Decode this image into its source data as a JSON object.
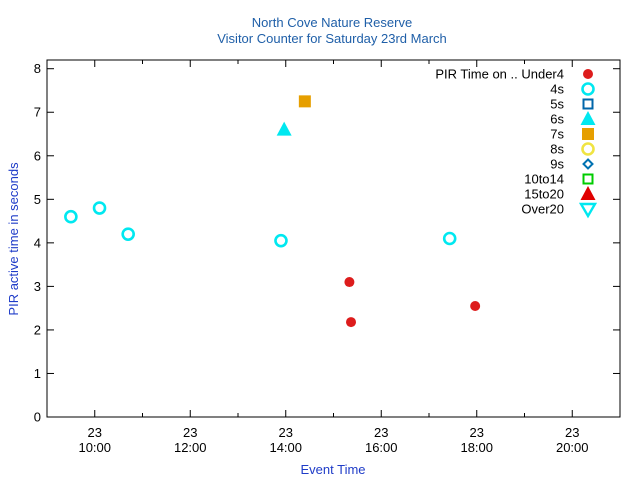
{
  "chart_data": {
    "type": "scatter",
    "title": [
      "North Cove Nature Reserve",
      "Visitor Counter for Saturday 23rd March"
    ],
    "xlabel": "Event Time",
    "ylabel": "PIR active time in seconds",
    "xlim": [
      "23 09:00",
      "23 21:00"
    ],
    "ylim": [
      0,
      8.2
    ],
    "x_ticks": [
      {
        "line1": "23",
        "line2": "10:00"
      },
      {
        "line1": "23",
        "line2": "12:00"
      },
      {
        "line1": "23",
        "line2": "14:00"
      },
      {
        "line1": "23",
        "line2": "16:00"
      },
      {
        "line1": "23",
        "line2": "18:00"
      },
      {
        "line1": "23",
        "line2": "20:00"
      }
    ],
    "y_ticks": [
      "0",
      "1",
      "2",
      "3",
      "4",
      "5",
      "6",
      "7",
      "8"
    ],
    "legend_position": "top-right",
    "legend_title": "PIR Time on ..",
    "grid": false,
    "series": [
      {
        "name": "Under4",
        "color": "#dd1c1c",
        "marker": "filled-circle",
        "points": [
          {
            "x": "23 15:20",
            "y": 3.1
          },
          {
            "x": "23 15:22",
            "y": 2.18
          },
          {
            "x": "23 17:58",
            "y": 2.55
          }
        ]
      },
      {
        "name": "4s",
        "color": "#00e8f0",
        "marker": "open-circle",
        "points": [
          {
            "x": "23 09:30",
            "y": 4.6
          },
          {
            "x": "23 10:06",
            "y": 4.8
          },
          {
            "x": "23 10:42",
            "y": 4.2
          },
          {
            "x": "23 13:54",
            "y": 4.05
          },
          {
            "x": "23 17:26",
            "y": 4.1
          }
        ]
      },
      {
        "name": "5s",
        "color": "#0066aa",
        "marker": "open-square",
        "points": []
      },
      {
        "name": "6s",
        "color": "#00e8f0",
        "marker": "filled-triangle-up",
        "points": [
          {
            "x": "23 13:58",
            "y": 6.6
          }
        ]
      },
      {
        "name": "7s",
        "color": "#e69f00",
        "marker": "filled-square",
        "points": [
          {
            "x": "23 14:24",
            "y": 7.25
          }
        ]
      },
      {
        "name": "8s",
        "color": "#f0e442",
        "marker": "open-circle",
        "points": []
      },
      {
        "name": "9s",
        "color": "#0072b2",
        "marker": "open-diamond",
        "points": []
      },
      {
        "name": "10to14",
        "color": "#00cc00",
        "marker": "open-square",
        "points": []
      },
      {
        "name": "15to20",
        "color": "#e00000",
        "marker": "filled-triangle-up",
        "points": []
      },
      {
        "name": "Over20",
        "color": "#00e8f0",
        "marker": "open-triangle-down",
        "points": []
      }
    ],
    "colors": {
      "title": "#1f5fa8",
      "axis_label": "#1f3cc8",
      "axes": "#000000"
    }
  }
}
